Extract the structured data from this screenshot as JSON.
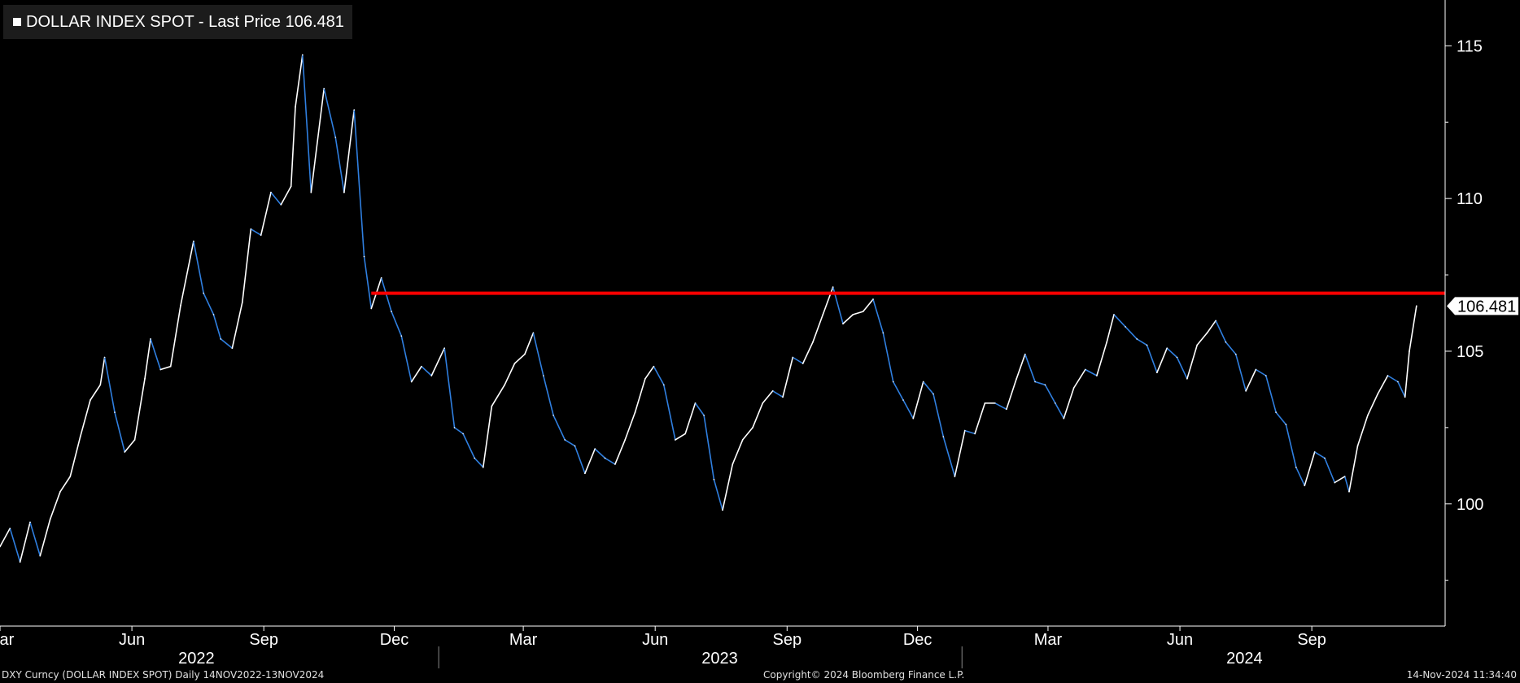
{
  "legend": {
    "swatch_color": "#ffffff",
    "text": "DOLLAR INDEX SPOT - Last Price 106.481"
  },
  "footer": {
    "left": "DXY Curncy (DOLLAR INDEX SPOT)  Daily 14NOV2022-13NOV2024",
    "center": "Copyright© 2024 Bloomberg Finance L.P.",
    "right": "14-Nov-2024 11:34:40"
  },
  "colors": {
    "background": "#000000",
    "line_up": "#ffffff",
    "line_down": "#2f7fe0",
    "resistance": "#ff0000",
    "axis": "#ffffff"
  },
  "chart_data": {
    "type": "line",
    "title": "DOLLAR INDEX SPOT - Last Price 106.481",
    "xlabel": "",
    "ylabel": "",
    "ylim": [
      96.0,
      116.5
    ],
    "xlim": [
      "2022-03-01",
      "2024-12-03"
    ],
    "y_ticks": [
      100,
      105,
      110,
      115
    ],
    "month_ticks": [
      {
        "label": "Mar",
        "date": "2022-03-01"
      },
      {
        "label": "Jun",
        "date": "2022-06-01"
      },
      {
        "label": "Sep",
        "date": "2022-09-01"
      },
      {
        "label": "Dec",
        "date": "2022-12-01"
      },
      {
        "label": "Mar",
        "date": "2023-03-01"
      },
      {
        "label": "Jun",
        "date": "2023-06-01"
      },
      {
        "label": "Sep",
        "date": "2023-09-01"
      },
      {
        "label": "Dec",
        "date": "2023-12-01"
      },
      {
        "label": "Mar",
        "date": "2024-03-01"
      },
      {
        "label": "Jun",
        "date": "2024-06-01"
      },
      {
        "label": "Sep",
        "date": "2024-09-01"
      }
    ],
    "year_labels": [
      {
        "label": "2022",
        "date": "2022-07-16"
      },
      {
        "label": "2023",
        "date": "2023-07-16"
      },
      {
        "label": "2024",
        "date": "2024-07-16"
      }
    ],
    "year_dividers": [
      "2023-01-01",
      "2024-01-01"
    ],
    "last_price": 106.481,
    "resistance_level": 106.9,
    "resistance_start": "2022-11-15",
    "series": [
      {
        "values": [
          [
            "2022-03-01",
            98.6
          ],
          [
            "2022-03-08",
            99.2
          ],
          [
            "2022-03-15",
            98.1
          ],
          [
            "2022-03-22",
            99.4
          ],
          [
            "2022-03-29",
            98.3
          ],
          [
            "2022-04-05",
            99.5
          ],
          [
            "2022-04-12",
            100.4
          ],
          [
            "2022-04-19",
            100.9
          ],
          [
            "2022-04-26",
            102.2
          ],
          [
            "2022-05-03",
            103.4
          ],
          [
            "2022-05-10",
            103.9
          ],
          [
            "2022-05-13",
            104.8
          ],
          [
            "2022-05-20",
            103.0
          ],
          [
            "2022-05-27",
            101.7
          ],
          [
            "2022-06-03",
            102.1
          ],
          [
            "2022-06-10",
            104.1
          ],
          [
            "2022-06-14",
            105.4
          ],
          [
            "2022-06-21",
            104.4
          ],
          [
            "2022-06-28",
            104.5
          ],
          [
            "2022-07-05",
            106.5
          ],
          [
            "2022-07-14",
            108.6
          ],
          [
            "2022-07-21",
            106.9
          ],
          [
            "2022-07-28",
            106.2
          ],
          [
            "2022-08-02",
            105.4
          ],
          [
            "2022-08-10",
            105.1
          ],
          [
            "2022-08-17",
            106.6
          ],
          [
            "2022-08-23",
            109.0
          ],
          [
            "2022-08-30",
            108.8
          ],
          [
            "2022-09-06",
            110.2
          ],
          [
            "2022-09-13",
            109.8
          ],
          [
            "2022-09-20",
            110.4
          ],
          [
            "2022-09-23",
            113.0
          ],
          [
            "2022-09-28",
            114.7
          ],
          [
            "2022-10-04",
            110.2
          ],
          [
            "2022-10-13",
            113.6
          ],
          [
            "2022-10-21",
            112.0
          ],
          [
            "2022-10-27",
            110.2
          ],
          [
            "2022-11-03",
            112.9
          ],
          [
            "2022-11-10",
            108.1
          ],
          [
            "2022-11-15",
            106.4
          ],
          [
            "2022-11-22",
            107.4
          ],
          [
            "2022-11-29",
            106.3
          ],
          [
            "2022-12-06",
            105.5
          ],
          [
            "2022-12-13",
            104.0
          ],
          [
            "2022-12-20",
            104.5
          ],
          [
            "2022-12-27",
            104.2
          ],
          [
            "2023-01-05",
            105.1
          ],
          [
            "2023-01-12",
            102.5
          ],
          [
            "2023-01-18",
            102.3
          ],
          [
            "2023-01-26",
            101.5
          ],
          [
            "2023-02-01",
            101.2
          ],
          [
            "2023-02-07",
            103.2
          ],
          [
            "2023-02-16",
            103.9
          ],
          [
            "2023-02-23",
            104.6
          ],
          [
            "2023-03-02",
            104.9
          ],
          [
            "2023-03-08",
            105.6
          ],
          [
            "2023-03-15",
            104.2
          ],
          [
            "2023-03-22",
            102.9
          ],
          [
            "2023-03-30",
            102.1
          ],
          [
            "2023-04-06",
            101.9
          ],
          [
            "2023-04-13",
            101.0
          ],
          [
            "2023-04-20",
            101.8
          ],
          [
            "2023-04-27",
            101.5
          ],
          [
            "2023-05-04",
            101.3
          ],
          [
            "2023-05-11",
            102.1
          ],
          [
            "2023-05-18",
            103.0
          ],
          [
            "2023-05-25",
            104.1
          ],
          [
            "2023-05-31",
            104.5
          ],
          [
            "2023-06-07",
            103.9
          ],
          [
            "2023-06-15",
            102.1
          ],
          [
            "2023-06-22",
            102.3
          ],
          [
            "2023-06-29",
            103.3
          ],
          [
            "2023-07-05",
            102.9
          ],
          [
            "2023-07-12",
            100.8
          ],
          [
            "2023-07-18",
            99.8
          ],
          [
            "2023-07-25",
            101.3
          ],
          [
            "2023-08-01",
            102.1
          ],
          [
            "2023-08-08",
            102.5
          ],
          [
            "2023-08-15",
            103.3
          ],
          [
            "2023-08-22",
            103.7
          ],
          [
            "2023-08-29",
            103.5
          ],
          [
            "2023-09-05",
            104.8
          ],
          [
            "2023-09-12",
            104.6
          ],
          [
            "2023-09-19",
            105.3
          ],
          [
            "2023-09-26",
            106.2
          ],
          [
            "2023-10-03",
            107.1
          ],
          [
            "2023-10-10",
            105.9
          ],
          [
            "2023-10-17",
            106.2
          ],
          [
            "2023-10-24",
            106.3
          ],
          [
            "2023-10-31",
            106.7
          ],
          [
            "2023-11-07",
            105.6
          ],
          [
            "2023-11-14",
            104.0
          ],
          [
            "2023-11-21",
            103.4
          ],
          [
            "2023-11-28",
            102.8
          ],
          [
            "2023-12-05",
            104.0
          ],
          [
            "2023-12-12",
            103.6
          ],
          [
            "2023-12-19",
            102.2
          ],
          [
            "2023-12-27",
            100.9
          ],
          [
            "2024-01-03",
            102.4
          ],
          [
            "2024-01-10",
            102.3
          ],
          [
            "2024-01-17",
            103.3
          ],
          [
            "2024-01-24",
            103.3
          ],
          [
            "2024-02-01",
            103.1
          ],
          [
            "2024-02-08",
            104.1
          ],
          [
            "2024-02-14",
            104.9
          ],
          [
            "2024-02-21",
            104.0
          ],
          [
            "2024-02-28",
            103.9
          ],
          [
            "2024-03-06",
            103.3
          ],
          [
            "2024-03-12",
            102.8
          ],
          [
            "2024-03-19",
            103.8
          ],
          [
            "2024-03-27",
            104.4
          ],
          [
            "2024-04-04",
            104.2
          ],
          [
            "2024-04-11",
            105.3
          ],
          [
            "2024-04-16",
            106.2
          ],
          [
            "2024-04-24",
            105.8
          ],
          [
            "2024-05-02",
            105.4
          ],
          [
            "2024-05-09",
            105.2
          ],
          [
            "2024-05-16",
            104.3
          ],
          [
            "2024-05-23",
            105.1
          ],
          [
            "2024-05-30",
            104.8
          ],
          [
            "2024-06-06",
            104.1
          ],
          [
            "2024-06-13",
            105.2
          ],
          [
            "2024-06-20",
            105.6
          ],
          [
            "2024-06-26",
            106.0
          ],
          [
            "2024-07-03",
            105.3
          ],
          [
            "2024-07-10",
            104.9
          ],
          [
            "2024-07-17",
            103.7
          ],
          [
            "2024-07-24",
            104.4
          ],
          [
            "2024-07-31",
            104.2
          ],
          [
            "2024-08-07",
            103.0
          ],
          [
            "2024-08-14",
            102.6
          ],
          [
            "2024-08-21",
            101.2
          ],
          [
            "2024-08-27",
            100.6
          ],
          [
            "2024-09-03",
            101.7
          ],
          [
            "2024-09-10",
            101.5
          ],
          [
            "2024-09-17",
            100.7
          ],
          [
            "2024-09-24",
            100.9
          ],
          [
            "2024-09-27",
            100.4
          ],
          [
            "2024-10-03",
            101.9
          ],
          [
            "2024-10-10",
            102.9
          ],
          [
            "2024-10-17",
            103.6
          ],
          [
            "2024-10-24",
            104.2
          ],
          [
            "2024-10-31",
            104.0
          ],
          [
            "2024-11-05",
            103.5
          ],
          [
            "2024-11-08",
            105.0
          ],
          [
            "2024-11-13",
            106.481
          ]
        ]
      }
    ]
  }
}
